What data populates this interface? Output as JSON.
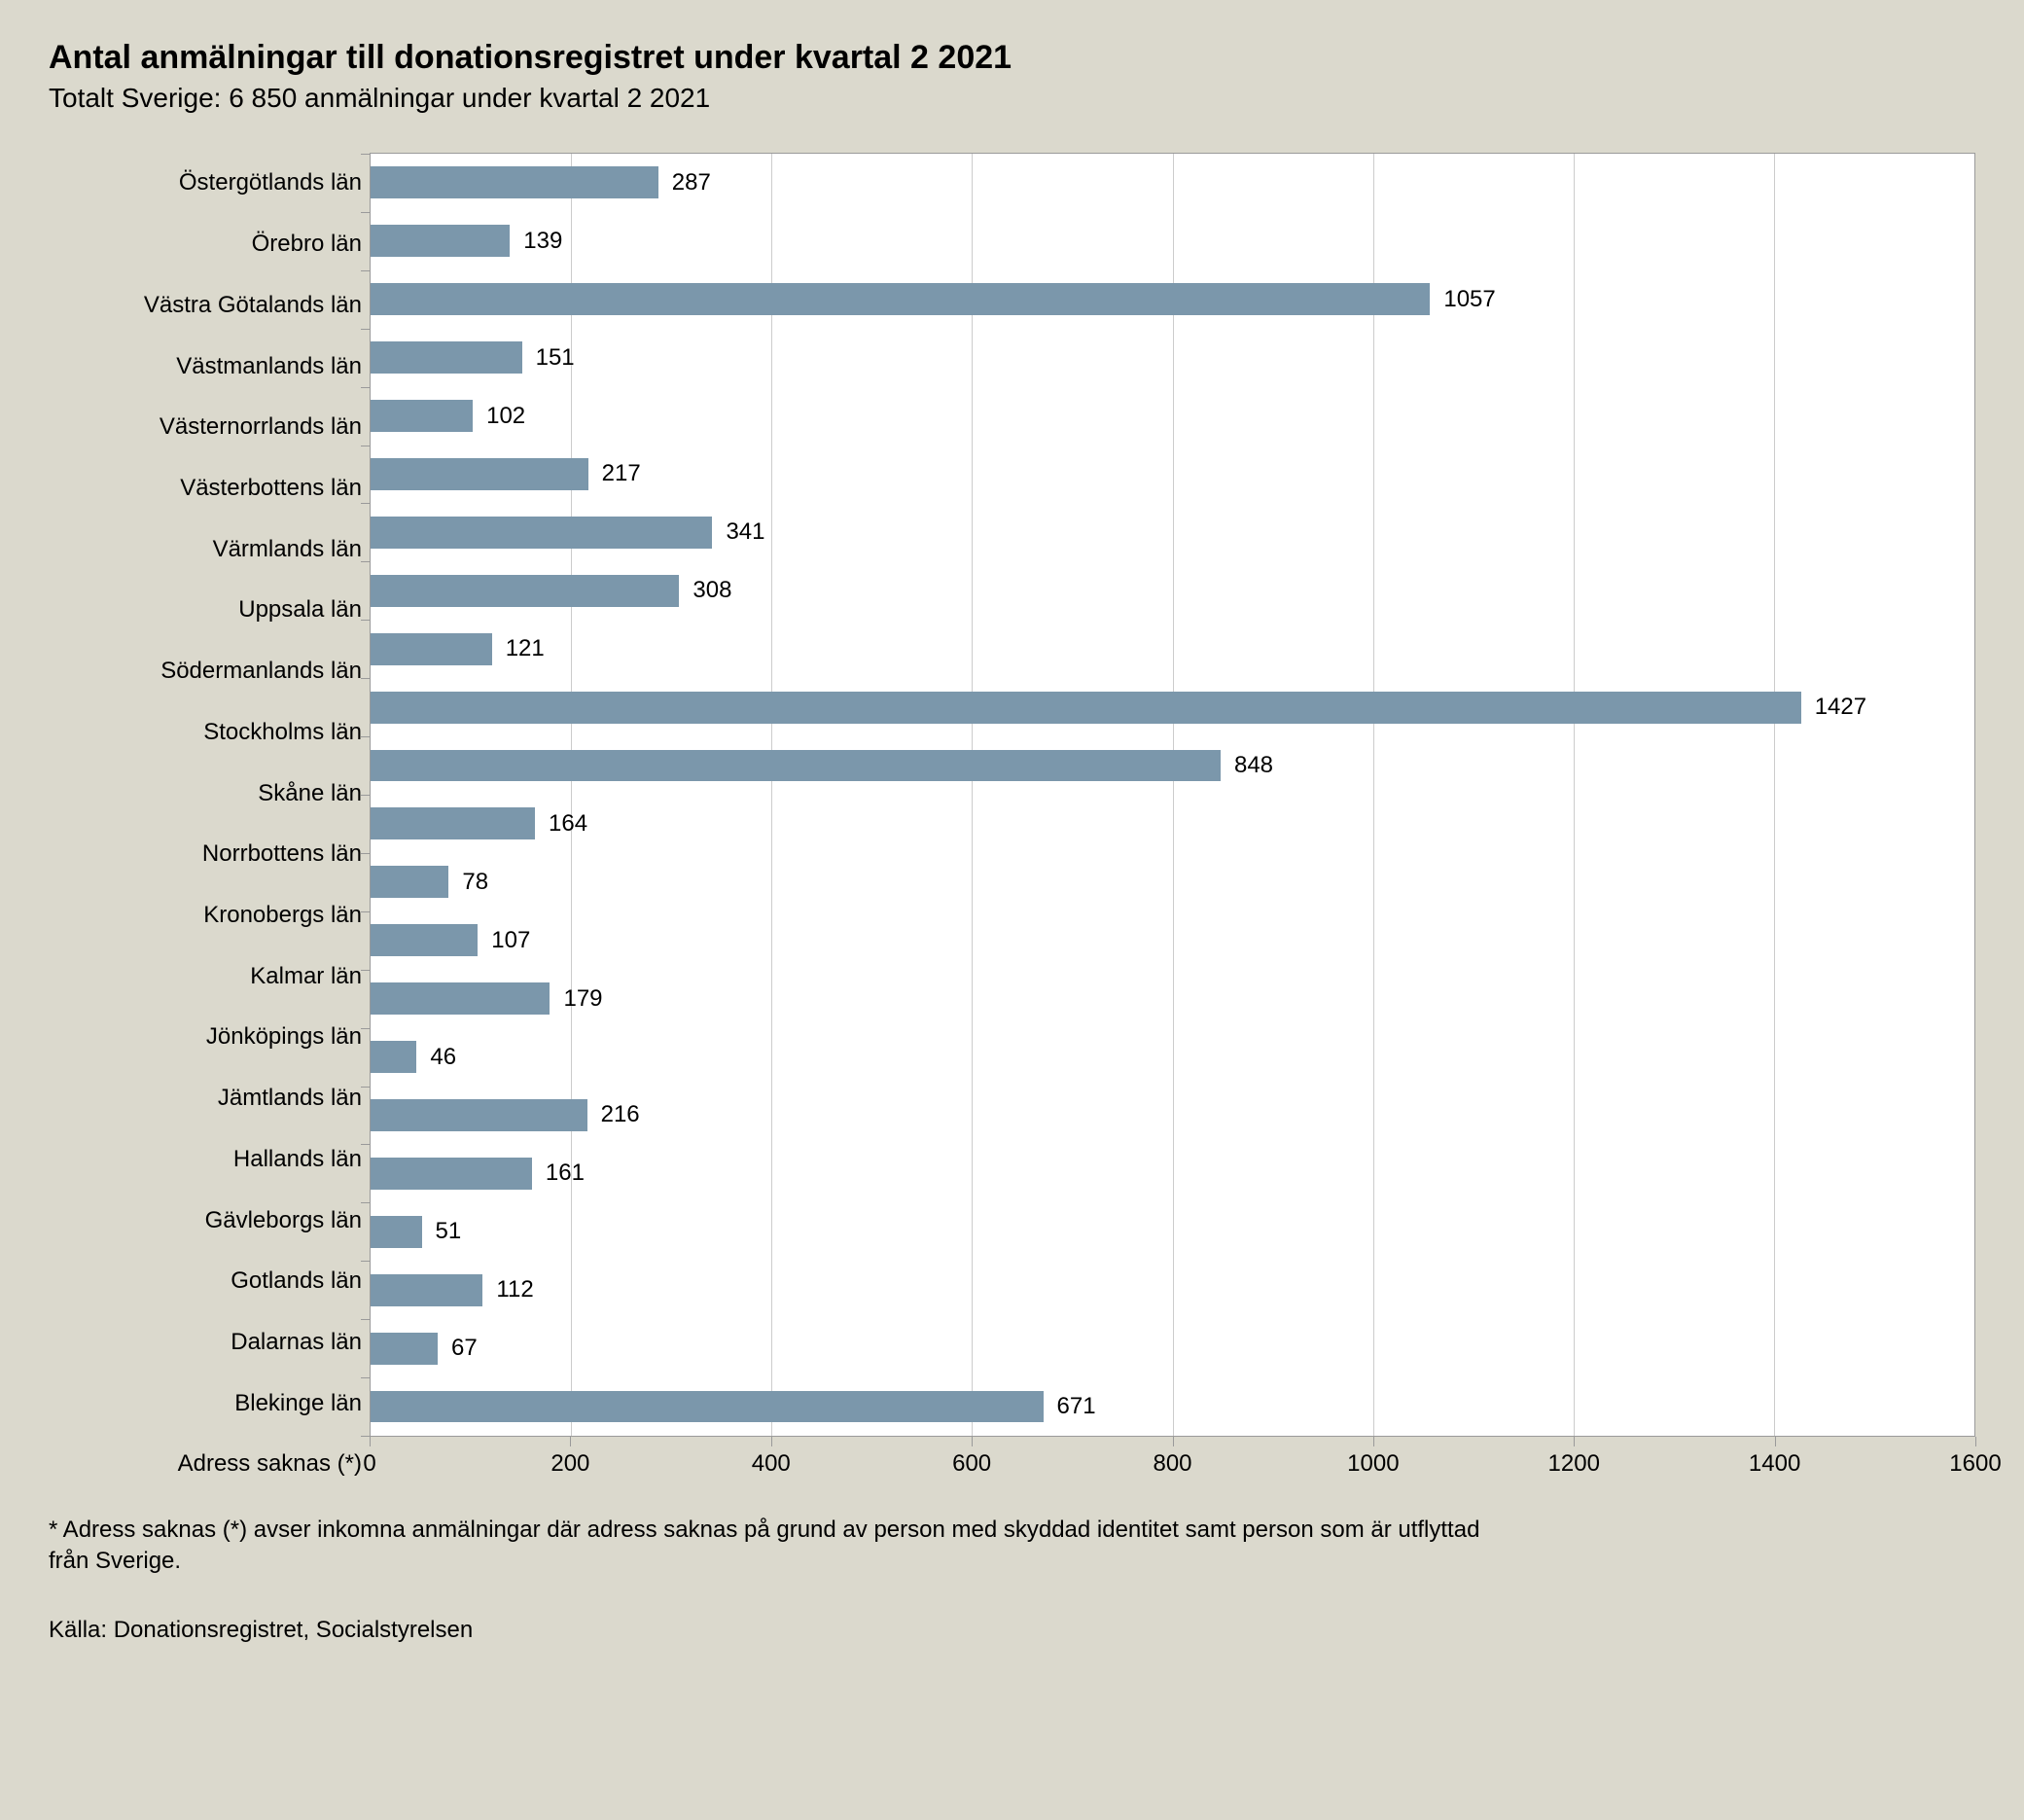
{
  "title": "Antal anmälningar till donationsregistret under kvartal 2 2021",
  "subtitle": "Totalt Sverige: 6 850 anmälningar under kvartal 2 2021",
  "footnote": "* Adress saknas (*) avser inkomna anmälningar där adress saknas på grund av person med skyddad identitet samt person som är utflyttad från Sverige.",
  "source": "Källa: Donationsregistret, Socialstyrelsen",
  "chart": {
    "type": "bar-horizontal",
    "xlim": [
      0,
      1600
    ],
    "xtick_step": 200,
    "bar_color": "#7b97ab",
    "background_color": "#ffffff",
    "page_background": "#dbd9cd",
    "grid_color": "#cccccc",
    "border_color": "#9a9a9a",
    "label_fontsize": 24,
    "title_fontsize": 34,
    "subtitle_fontsize": 28,
    "bar_height_ratio": 0.55,
    "categories": [
      {
        "label": "Östergötlands län",
        "value": 287
      },
      {
        "label": "Örebro län",
        "value": 139
      },
      {
        "label": "Västra Götalands län",
        "value": 1057
      },
      {
        "label": "Västmanlands län",
        "value": 151
      },
      {
        "label": "Västernorrlands län",
        "value": 102
      },
      {
        "label": "Västerbottens län",
        "value": 217
      },
      {
        "label": "Värmlands län",
        "value": 341
      },
      {
        "label": "Uppsala län",
        "value": 308
      },
      {
        "label": "Södermanlands län",
        "value": 121
      },
      {
        "label": "Stockholms län",
        "value": 1427
      },
      {
        "label": "Skåne län",
        "value": 848
      },
      {
        "label": "Norrbottens län",
        "value": 164
      },
      {
        "label": "Kronobergs län",
        "value": 78
      },
      {
        "label": "Kalmar län",
        "value": 107
      },
      {
        "label": "Jönköpings län",
        "value": 179
      },
      {
        "label": "Jämtlands län",
        "value": 46
      },
      {
        "label": "Hallands län",
        "value": 216
      },
      {
        "label": "Gävleborgs län",
        "value": 161
      },
      {
        "label": "Gotlands län",
        "value": 51
      },
      {
        "label": "Dalarnas län",
        "value": 112
      },
      {
        "label": "Blekinge län",
        "value": 67
      },
      {
        "label": "Adress saknas (*)",
        "value": 671
      }
    ]
  }
}
